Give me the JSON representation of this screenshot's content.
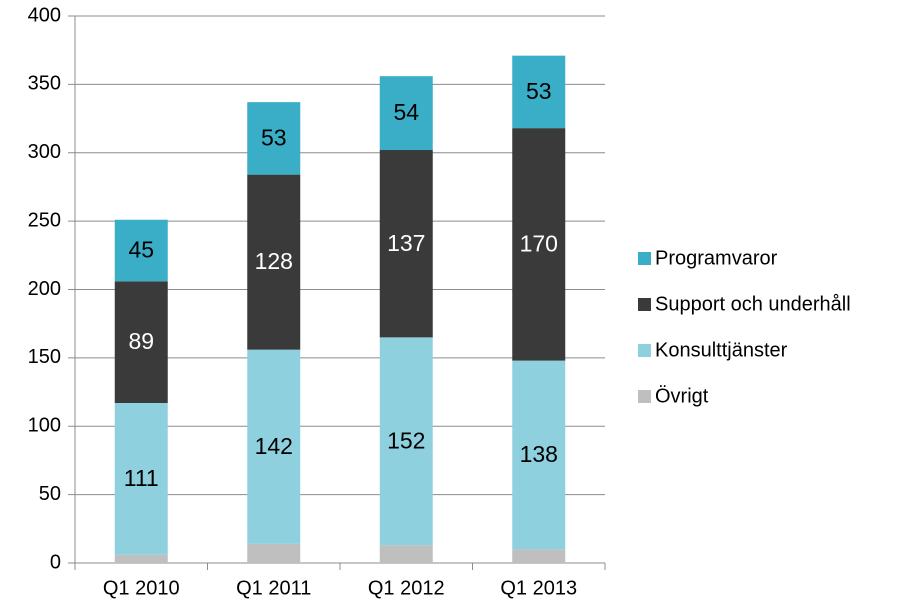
{
  "chart_data": {
    "type": "stacked_bar",
    "categories": [
      "Q1 2010",
      "Q1 2011",
      "Q1 2012",
      "Q1 2013"
    ],
    "series": [
      {
        "name": "Övrigt",
        "color": "#bfbfbf",
        "values": [
          6,
          14,
          13,
          10
        ],
        "show_labels": false
      },
      {
        "name": "Konsulttjänster",
        "color": "#8fd0df",
        "values": [
          111,
          142,
          152,
          138
        ],
        "show_labels": true
      },
      {
        "name": "Support och underhåll",
        "color": "#3a3a3a",
        "values": [
          89,
          128,
          137,
          170
        ],
        "show_labels": true
      },
      {
        "name": "Programvaror",
        "color": "#3aaec7",
        "values": [
          45,
          53,
          54,
          53
        ],
        "show_labels": true
      }
    ],
    "ylim": [
      0,
      400
    ],
    "yticks": [
      0,
      50,
      100,
      150,
      200,
      250,
      300,
      350,
      400
    ],
    "grid": true,
    "legend": "right"
  }
}
